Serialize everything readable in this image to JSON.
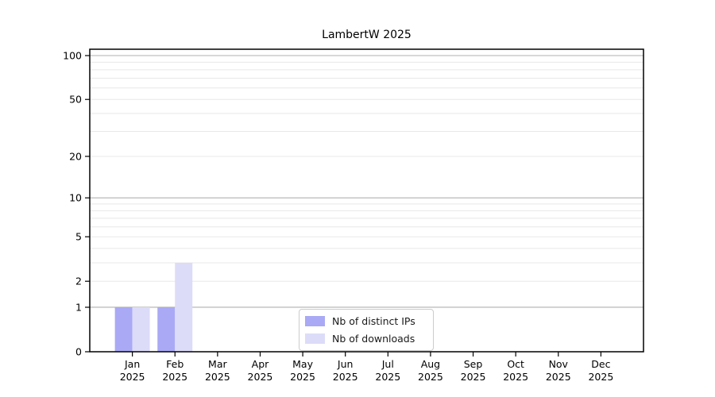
{
  "figure": {
    "background": "#ffffff"
  },
  "chart_data": {
    "type": "bar",
    "title": "LambertW 2025",
    "categories": [
      "Jan\n2025",
      "Feb\n2025",
      "Mar\n2025",
      "Apr\n2025",
      "May\n2025",
      "Jun\n2025",
      "Jul\n2025",
      "Aug\n2025",
      "Sep\n2025",
      "Oct\n2025",
      "Nov\n2025",
      "Dec\n2025"
    ],
    "series": [
      {
        "name": "Nb of distinct IPs",
        "color": "#a9a9f5",
        "values": [
          1,
          1,
          0,
          0,
          0,
          0,
          0,
          0,
          0,
          0,
          0,
          0
        ]
      },
      {
        "name": "Nb of downloads",
        "color": "#dcdcf9",
        "values": [
          1,
          3,
          0,
          0,
          0,
          0,
          0,
          0,
          0,
          0,
          0,
          0
        ]
      }
    ],
    "xlabel": "",
    "ylabel": "",
    "y_axis": {
      "scale": "log1p",
      "range_max": 100,
      "tick_labels": [
        "0",
        "1",
        "2",
        "5",
        "10",
        "20",
        "50",
        "100"
      ],
      "tick_values": [
        0,
        1,
        2,
        5,
        10,
        20,
        50,
        100
      ],
      "major_gridline_values": [
        1,
        10,
        100
      ],
      "minor_gridline_values": [
        2,
        3,
        4,
        5,
        6,
        7,
        8,
        9,
        20,
        30,
        40,
        50,
        60,
        70,
        80,
        90
      ]
    },
    "grid": "horizontal",
    "legend_position": "bottom-center",
    "colors": {
      "axis": "#000000",
      "major_grid": "#b0b0b0",
      "minor_grid": "#e8e8e8",
      "tick_text": "#000000"
    }
  }
}
